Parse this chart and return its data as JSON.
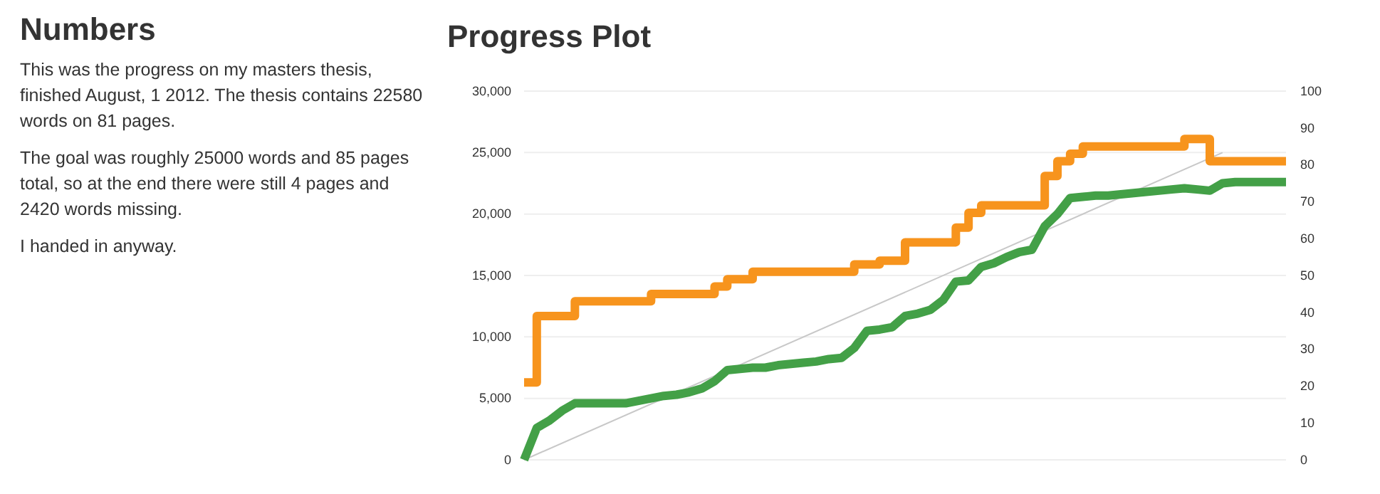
{
  "chart_data": [
    {
      "type": "other",
      "title": "Numbers",
      "annotations": [
        "This was the progress on my masters thesis, finished August, 1 2012. The thesis contains 22580 words on 81 pages.",
        "The goal was roughly 25000 words and 85 pages total, so at the end there were still 4 pages and 2420 words missing.",
        "I handed in anyway."
      ]
    },
    {
      "type": "line",
      "title": "Progress Plot",
      "categories": [
        null,
        null,
        null,
        null,
        null,
        null,
        null,
        null,
        null,
        null,
        null,
        null,
        null,
        null,
        null,
        null,
        null,
        null,
        null,
        null,
        null,
        null,
        null,
        null,
        null,
        null,
        null,
        null,
        null,
        null,
        null,
        null,
        null,
        null,
        null,
        null,
        null,
        null,
        null,
        null,
        null,
        null,
        null,
        null,
        null,
        null,
        null,
        null,
        null,
        null,
        null,
        null,
        null,
        null,
        null,
        null,
        null,
        null,
        null,
        null,
        null
      ],
      "series": [
        {
          "type": "step",
          "axis": "y2",
          "color": "#f7941d",
          "values": [
            21,
            39,
            39,
            39,
            43,
            43,
            43,
            43,
            43,
            43,
            45,
            45,
            45,
            45,
            45,
            47,
            49,
            49,
            51,
            51,
            51,
            51,
            51,
            51,
            51,
            51,
            53,
            53,
            54,
            54,
            59,
            59,
            59,
            59,
            63,
            67,
            69,
            69,
            69,
            69,
            69,
            77,
            81,
            83,
            85,
            85,
            85,
            85,
            85,
            85,
            85,
            85,
            87,
            87,
            81,
            81,
            81,
            81,
            81,
            81,
            81
          ]
        },
        {
          "type": "line",
          "axis": "y",
          "color": "#43a047",
          "values": [
            0,
            2600,
            3200,
            4000,
            4600,
            4600,
            4600,
            4600,
            4600,
            4800,
            5000,
            5200,
            5300,
            5500,
            5800,
            6400,
            7300,
            7400,
            7500,
            7500,
            7700,
            7800,
            7900,
            8000,
            8200,
            8300,
            9100,
            10500,
            10600,
            10800,
            11700,
            11900,
            12200,
            13000,
            14500,
            14600,
            15700,
            16000,
            16500,
            16900,
            17100,
            19000,
            20000,
            21300,
            21400,
            21500,
            21500,
            21600,
            21700,
            21800,
            21900,
            22000,
            22100,
            22000,
            21900,
            22500,
            22600,
            22600,
            22600,
            22600,
            22600
          ]
        },
        {
          "type": "line",
          "axis": "y",
          "color": "#c8c8c8",
          "values": [
            0,
            null,
            null,
            null,
            null,
            null,
            null,
            null,
            null,
            null,
            null,
            null,
            null,
            null,
            null,
            null,
            null,
            null,
            null,
            null,
            null,
            null,
            null,
            null,
            null,
            null,
            null,
            null,
            null,
            null,
            null,
            null,
            null,
            null,
            null,
            null,
            null,
            null,
            null,
            null,
            null,
            null,
            null,
            null,
            null,
            null,
            null,
            null,
            null,
            null,
            null,
            null,
            null,
            null,
            null,
            25000,
            null,
            null,
            null,
            null,
            null
          ]
        }
      ],
      "ylim": [
        0,
        30000
      ],
      "yticks": [
        0,
        {
          "value": 5000,
          "label": "5,000"
        },
        {
          "value": 10000,
          "label": "10,000"
        },
        {
          "value": 15000,
          "label": "15,000"
        },
        {
          "value": 20000,
          "label": "20,000"
        },
        {
          "value": 25000,
          "label": "25,000"
        },
        {
          "value": 30000,
          "label": "30,000"
        }
      ],
      "y2lim": [
        0,
        100
      ],
      "y2ticks": [
        0,
        10,
        20,
        30,
        40,
        50,
        60,
        70,
        80,
        90,
        100
      ],
      "grid": "y",
      "tick_labels": "y"
    }
  ]
}
